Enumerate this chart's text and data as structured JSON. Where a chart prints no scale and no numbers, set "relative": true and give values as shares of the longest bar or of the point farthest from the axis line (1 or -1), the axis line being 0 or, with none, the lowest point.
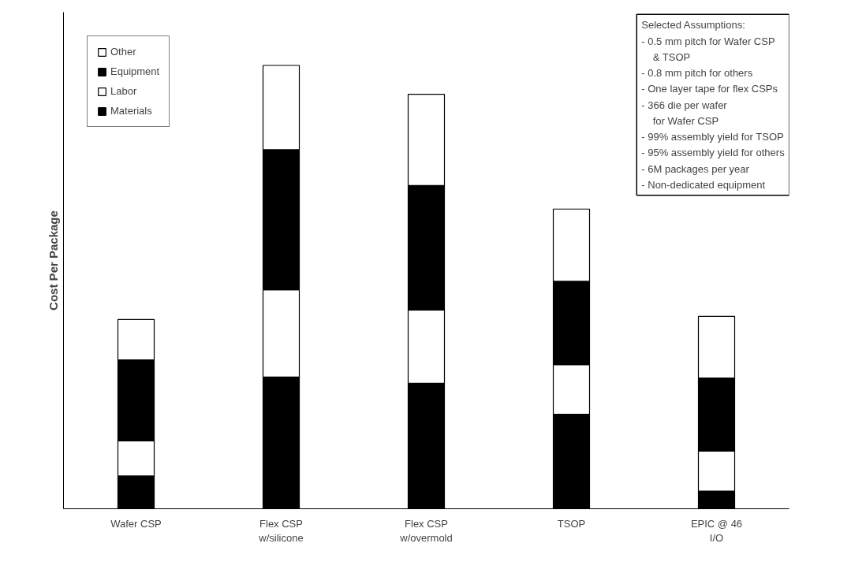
{
  "chart_data": {
    "type": "bar",
    "stacked": true,
    "relative": true,
    "ylabel": "Cost Per Package",
    "categories": [
      "Wafer CSP",
      "Flex CSP\nw/silicone",
      "Flex CSP\nw/overmold",
      "TSOP",
      "EPIC @ 46\nI/O"
    ],
    "series": [
      {
        "name": "Materials",
        "color": "#000000",
        "values": [
          0.074,
          0.297,
          0.283,
          0.213,
          0.04
        ]
      },
      {
        "name": "Labor",
        "color": "#ffffff",
        "values": [
          0.079,
          0.197,
          0.165,
          0.112,
          0.09
        ]
      },
      {
        "name": "Equipment",
        "color": "#000000",
        "values": [
          0.183,
          0.316,
          0.281,
          0.188,
          0.165
        ]
      },
      {
        "name": "Other",
        "color": "#ffffff",
        "values": [
          0.091,
          0.19,
          0.206,
          0.163,
          0.139
        ]
      }
    ],
    "legend": "top left",
    "grid": false,
    "annotations": [
      "Selected Assumptions:",
      "- 0.5 mm pitch for Wafer CSP\n   & TSOP",
      "- 0.8 mm pitch for others",
      "- One layer tape for flex CSPs",
      "- 366 die per wafer\n   for Wafer CSP",
      "- 99% assembly yield for TSOP",
      "- 95% assembly yield for others",
      "- 6M packages per year",
      "- Non-dedicated equipment"
    ]
  }
}
